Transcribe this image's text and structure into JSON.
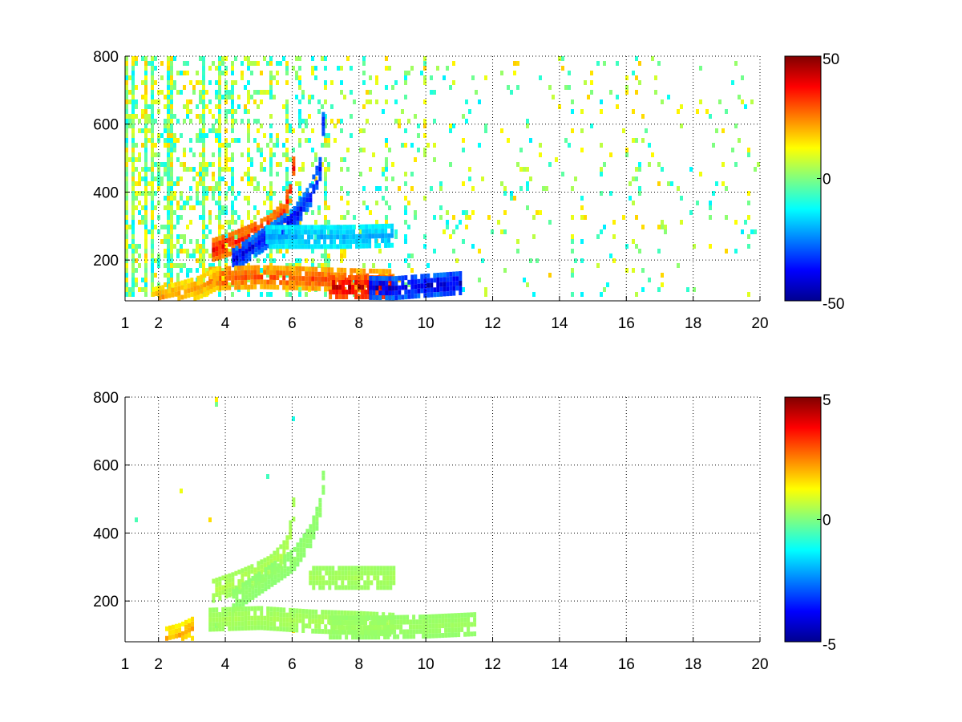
{
  "chart_data": [
    {
      "type": "heatmap",
      "title": "",
      "xlabel": "",
      "ylabel": "",
      "xlim": [
        1,
        20
      ],
      "ylim": [
        80,
        800
      ],
      "xticks": [
        1,
        2,
        4,
        6,
        8,
        10,
        12,
        14,
        16,
        18,
        20
      ],
      "yticks": [
        200,
        400,
        600,
        800
      ],
      "grid": true,
      "colormap": "jet",
      "clim": [
        -50,
        50
      ],
      "colorbar_ticks": [
        50,
        0,
        -50
      ],
      "features": [
        {
          "kind": "curve",
          "value": 35,
          "points": [
            [
              3.6,
              230
            ],
            [
              4.2,
              250
            ],
            [
              4.8,
              275
            ],
            [
              5.3,
              300
            ],
            [
              5.7,
              340
            ],
            [
              5.9,
              400
            ],
            [
              6.0,
              470
            ]
          ]
        },
        {
          "kind": "curve",
          "value": -38,
          "points": [
            [
              4.2,
              200
            ],
            [
              4.8,
              240
            ],
            [
              5.4,
              280
            ],
            [
              6.0,
              320
            ],
            [
              6.5,
              390
            ],
            [
              6.8,
              470
            ],
            [
              6.9,
              620
            ]
          ]
        },
        {
          "kind": "band",
          "value": 30,
          "points": [
            [
              3.5,
              145
            ],
            [
              5.0,
              150
            ],
            [
              6.5,
              145
            ],
            [
              8.0,
              140
            ],
            [
              9.0,
              138
            ]
          ]
        },
        {
          "kind": "band",
          "value": 42,
          "points": [
            [
              7.0,
              120
            ],
            [
              8.0,
              120
            ],
            [
              9.0,
              120
            ]
          ]
        },
        {
          "kind": "band",
          "value": -42,
          "points": [
            [
              8.3,
              118
            ],
            [
              9.0,
              117
            ],
            [
              10.0,
              125
            ],
            [
              11.0,
              132
            ]
          ]
        },
        {
          "kind": "band",
          "value": -20,
          "points": [
            [
              5.2,
              268
            ],
            [
              6.5,
              268
            ],
            [
              7.5,
              268
            ],
            [
              9.0,
              272
            ]
          ]
        },
        {
          "kind": "curve",
          "value": 22,
          "points": [
            [
              1.8,
              85
            ],
            [
              2.5,
              100
            ],
            [
              3.2,
              120
            ],
            [
              3.8,
              150
            ]
          ]
        }
      ]
    },
    {
      "type": "heatmap",
      "title": "",
      "xlabel": "",
      "ylabel": "",
      "xlim": [
        1,
        20
      ],
      "ylim": [
        80,
        800
      ],
      "xticks": [
        1,
        2,
        4,
        6,
        8,
        10,
        12,
        14,
        16,
        18,
        20
      ],
      "yticks": [
        200,
        400,
        600,
        800
      ],
      "grid": true,
      "colormap": "jet",
      "clim": [
        -5,
        5
      ],
      "colorbar_ticks": [
        5,
        0,
        -5
      ],
      "features": [
        {
          "kind": "curve",
          "value": 0.5,
          "points": [
            [
              3.6,
              230
            ],
            [
              4.2,
              250
            ],
            [
              4.8,
              275
            ],
            [
              5.3,
              300
            ],
            [
              5.7,
              340
            ],
            [
              5.9,
              400
            ],
            [
              6.0,
              470
            ]
          ]
        },
        {
          "kind": "curve",
          "value": 0.2,
          "points": [
            [
              4.2,
              200
            ],
            [
              4.8,
              240
            ],
            [
              5.4,
              280
            ],
            [
              6.0,
              320
            ],
            [
              6.5,
              390
            ],
            [
              6.8,
              470
            ],
            [
              6.9,
              560
            ]
          ]
        },
        {
          "kind": "band",
          "value": 0.4,
          "points": [
            [
              3.5,
              145
            ],
            [
              5.0,
              150
            ],
            [
              6.5,
              140
            ],
            [
              8.0,
              135
            ],
            [
              9.0,
              130
            ]
          ]
        },
        {
          "kind": "band",
          "value": 0.3,
          "points": [
            [
              7.0,
              122
            ],
            [
              8.5,
              122
            ],
            [
              10.0,
              125
            ],
            [
              11.5,
              132
            ]
          ]
        },
        {
          "kind": "band",
          "value": 0.4,
          "points": [
            [
              6.5,
              268
            ],
            [
              7.5,
              268
            ],
            [
              9.0,
              268
            ]
          ]
        },
        {
          "kind": "curve",
          "value": 2.0,
          "points": [
            [
              2.2,
              90
            ],
            [
              2.6,
              100
            ],
            [
              3.0,
              120
            ]
          ]
        }
      ]
    }
  ]
}
